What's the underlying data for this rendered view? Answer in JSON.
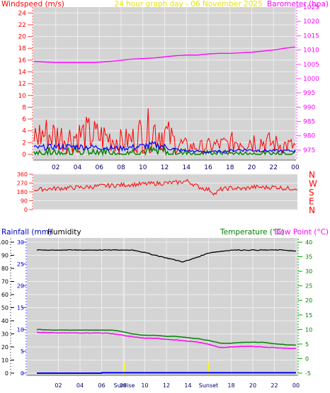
{
  "chart_data": [
    {
      "type": "line",
      "panel": "wind-barometer",
      "title": "24 hour graph day - 06 November 2025",
      "ylabel_left": "Windspeed (m/s)",
      "ylabel_right": "Barometer (hpa)",
      "x_ticks": [
        "02",
        "04",
        "06",
        "08",
        "10",
        "12",
        "14",
        "16",
        "18",
        "20",
        "22",
        "00"
      ],
      "x_range_hours": [
        0,
        24
      ],
      "ylim_left": [
        0,
        25
      ],
      "left_ticks": [
        0,
        2,
        4,
        6,
        8,
        10,
        12,
        14,
        16,
        18,
        20,
        22,
        24
      ],
      "ylim_right": [
        973,
        1025
      ],
      "right_ticks": [
        975,
        980,
        985,
        990,
        995,
        1000,
        1005,
        1010,
        1015,
        1020,
        1025
      ],
      "grid": true,
      "colors": {
        "gust": "#ff0000",
        "average": "#0000ff",
        "lull": "#008000",
        "barometer": "#ff00ff",
        "title": "#e6e600"
      },
      "series": [
        {
          "key": "barometer",
          "axis": "right",
          "x": [
            0,
            2,
            4,
            5.5,
            7,
            8,
            9,
            10,
            11,
            12,
            13,
            14,
            15,
            16,
            17,
            18,
            19,
            20,
            21,
            22,
            23,
            24
          ],
          "values": [
            1006.0,
            1005.6,
            1005.6,
            1005.6,
            1006.0,
            1006.4,
            1006.8,
            1007.0,
            1007.2,
            1007.6,
            1008.0,
            1008.2,
            1008.2,
            1008.6,
            1008.8,
            1008.8,
            1009.0,
            1009.2,
            1009.6,
            1010.0,
            1010.6,
            1011.0
          ]
        },
        {
          "key": "gust",
          "axis": "left",
          "x": [
            0,
            1,
            2,
            3,
            4,
            5,
            6,
            7,
            8,
            9,
            10,
            11,
            12,
            13,
            14,
            15,
            16,
            17,
            18,
            19,
            20,
            21,
            22,
            23,
            24
          ],
          "values": [
            3.0,
            3.5,
            3.2,
            2.8,
            3.2,
            3.4,
            3.0,
            2.8,
            2.2,
            2.5,
            3.8,
            4.2,
            3.6,
            2.0,
            1.4,
            1.2,
            1.4,
            1.6,
            1.8,
            2.6,
            2.4,
            2.2,
            1.8,
            1.6,
            1.4
          ]
        },
        {
          "key": "average",
          "axis": "left",
          "x": [
            0,
            2,
            4,
            6,
            8,
            10,
            11,
            12,
            13,
            14,
            16,
            18,
            19,
            20,
            22,
            24
          ],
          "values": [
            1.1,
            1.3,
            1.3,
            1.2,
            1.0,
            1.4,
            1.6,
            1.3,
            0.8,
            0.6,
            0.4,
            0.6,
            0.8,
            0.7,
            0.6,
            0.6
          ]
        },
        {
          "key": "lull",
          "axis": "left",
          "x": [
            0,
            4,
            8,
            11,
            14,
            18,
            24
          ],
          "values": [
            0.5,
            0.6,
            0.5,
            0.6,
            0.4,
            0.2,
            0.3
          ]
        }
      ]
    },
    {
      "type": "scatter",
      "panel": "wind-direction",
      "ylim": [
        0,
        360
      ],
      "y_ticks": [
        0,
        90,
        180,
        270,
        360
      ],
      "direction_labels": [
        "N",
        "W",
        "S",
        "E",
        "N"
      ],
      "colors": {
        "direction": "#ff0000"
      },
      "series": [
        {
          "key": "direction",
          "x": [
            0,
            1,
            2,
            3,
            4,
            5,
            6,
            7,
            8,
            9,
            10,
            11,
            12,
            13,
            14,
            15,
            16,
            16.5,
            17,
            18,
            19,
            20,
            21,
            22,
            23,
            24
          ],
          "values": [
            200,
            210,
            215,
            220,
            225,
            230,
            240,
            245,
            250,
            255,
            260,
            265,
            270,
            275,
            290,
            230,
            200,
            160,
            205,
            220,
            210,
            230,
            225,
            230,
            215,
            220
          ]
        }
      ]
    },
    {
      "type": "line",
      "panel": "rain-humidity-temperature",
      "ylabel_rainfall": "Rainfall (mm)",
      "ylabel_humidity": "Humidity",
      "ylabel_temperature": "Temperature (°C)",
      "ylabel_dewpoint": "Dew Point (°C)",
      "x_ticks": [
        "02",
        "04",
        "06",
        "08",
        "Sunrise",
        "10",
        "12",
        "14",
        "Sunset",
        "18",
        "20",
        "22",
        "00"
      ],
      "x_range_hours": [
        0,
        24
      ],
      "rain_axis": {
        "range": [
          0,
          30
        ],
        "ticks": [
          0,
          5,
          10,
          15,
          20,
          25,
          30
        ]
      },
      "humidity_axis": {
        "range": [
          0,
          100
        ],
        "ticks": [
          0,
          10,
          20,
          30,
          40,
          50,
          60,
          70,
          80,
          90,
          100
        ]
      },
      "temp_axis": {
        "range": [
          -5,
          40
        ],
        "ticks": [
          -5,
          0,
          5,
          10,
          15,
          20,
          25,
          30,
          35,
          40
        ]
      },
      "sunrise_hour": 8.1,
      "sunset_hour": 15.9,
      "colors": {
        "humidity": "#000000",
        "temperature": "#008000",
        "dewpoint": "#ff00ff",
        "rainfall": "#0000ff",
        "sun_marker": "#ffff00"
      },
      "series": [
        {
          "key": "humidity",
          "axis": "humidity",
          "x": [
            0,
            2,
            4,
            6,
            8,
            9,
            10,
            11,
            12,
            13,
            13.5,
            14,
            15,
            16,
            17,
            18,
            19,
            20,
            21,
            22,
            23,
            24
          ],
          "values": [
            94,
            94,
            94,
            94,
            94,
            94,
            92,
            90,
            88,
            86,
            85,
            86,
            89,
            92,
            93,
            94,
            94,
            94,
            94,
            94,
            94,
            93
          ]
        },
        {
          "key": "temperature",
          "axis": "temp",
          "x": [
            0,
            2,
            4,
            6,
            7,
            8,
            9,
            10,
            11,
            12,
            13,
            14,
            15,
            16,
            17,
            18,
            19,
            20,
            21,
            22,
            23,
            24
          ],
          "values": [
            10.0,
            9.8,
            9.8,
            9.8,
            9.8,
            9.2,
            8.4,
            8.0,
            8.0,
            7.7,
            7.6,
            7.2,
            6.8,
            6.2,
            5.3,
            5.3,
            5.6,
            5.6,
            5.6,
            5.1,
            4.8,
            4.6
          ]
        },
        {
          "key": "dewpoint",
          "axis": "temp",
          "x": [
            0,
            2,
            4,
            6,
            7,
            8,
            9,
            10,
            11,
            12,
            13,
            14,
            15,
            16,
            17,
            18,
            19,
            20,
            21,
            22,
            23,
            24
          ],
          "values": [
            9.0,
            8.8,
            8.8,
            8.8,
            8.6,
            8.0,
            7.4,
            7.0,
            7.0,
            6.6,
            6.4,
            6.0,
            5.6,
            4.8,
            3.8,
            4.0,
            4.2,
            4.2,
            4.0,
            3.8,
            3.6,
            3.5
          ]
        },
        {
          "key": "rainfall",
          "axis": "rain",
          "x": [
            0,
            6,
            6.01,
            24
          ],
          "values": [
            0.0,
            0.0,
            0.1,
            0.1
          ]
        }
      ]
    }
  ]
}
